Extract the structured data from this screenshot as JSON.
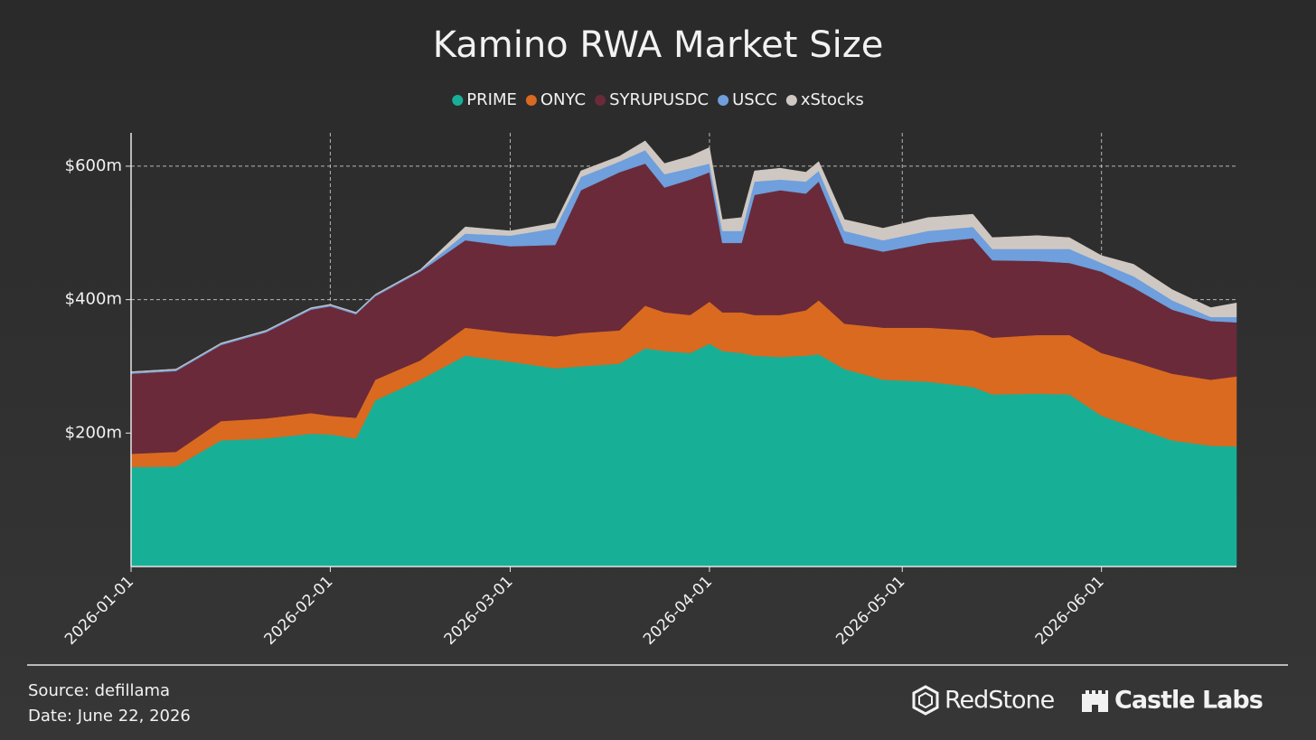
{
  "chart_data": {
    "type": "stacked-area",
    "title": "Kamino RWA Market Size",
    "x": [
      "2026-01-01",
      "2026-01-08",
      "2026-01-15",
      "2026-01-22",
      "2026-01-29",
      "2026-02-01",
      "2026-02-05",
      "2026-02-08",
      "2026-02-15",
      "2026-02-22",
      "2026-03-01",
      "2026-03-08",
      "2026-03-12",
      "2026-03-18",
      "2026-03-22",
      "2026-03-25",
      "2026-03-29",
      "2026-04-01",
      "2026-04-03",
      "2026-04-06",
      "2026-04-08",
      "2026-04-12",
      "2026-04-16",
      "2026-04-18",
      "2026-04-22",
      "2026-04-28",
      "2026-05-05",
      "2026-05-12",
      "2026-05-15",
      "2026-05-22",
      "2026-05-27",
      "2026-06-01",
      "2026-06-06",
      "2026-06-12",
      "2026-06-18",
      "2026-06-22"
    ],
    "series": [
      {
        "name": "PRIME",
        "color": "#17b097",
        "values": [
          149,
          150,
          189,
          192,
          199,
          198,
          192,
          249,
          280,
          316,
          307,
          297,
          300,
          304,
          327,
          323,
          320,
          334,
          323,
          320,
          316,
          314,
          316,
          318,
          296,
          280,
          277,
          269,
          258,
          259,
          258,
          226,
          209,
          189,
          181,
          180
        ]
      },
      {
        "name": "ONYC",
        "color": "#d96a20",
        "values": [
          20,
          22,
          29,
          30,
          31,
          28,
          31,
          31,
          29,
          42,
          43,
          48,
          50,
          50,
          64,
          58,
          57,
          63,
          58,
          61,
          61,
          63,
          68,
          81,
          68,
          78,
          81,
          85,
          85,
          88,
          89,
          94,
          98,
          100,
          99,
          105
        ]
      },
      {
        "name": "SYRUPUSDC",
        "color": "#6a2a3a",
        "values": [
          120,
          121,
          114,
          129,
          155,
          164,
          155,
          125,
          133,
          131,
          130,
          137,
          214,
          237,
          213,
          187,
          203,
          194,
          104,
          104,
          180,
          187,
          175,
          178,
          121,
          114,
          127,
          138,
          116,
          111,
          108,
          122,
          111,
          96,
          88,
          81
        ]
      },
      {
        "name": "USCC",
        "color": "#6f9fdc",
        "values": [
          2,
          2,
          2,
          2,
          2,
          2,
          2,
          2,
          2,
          10,
          16,
          25,
          20,
          16,
          20,
          20,
          17,
          13,
          18,
          18,
          20,
          16,
          18,
          16,
          18,
          17,
          18,
          17,
          17,
          18,
          21,
          13,
          17,
          14,
          6,
          8
        ]
      },
      {
        "name": "xStocks",
        "color": "#cfc8c2",
        "values": [
          1,
          1,
          1,
          1,
          1,
          1,
          1,
          1,
          1,
          10,
          7,
          8,
          9,
          8,
          14,
          16,
          18,
          24,
          17,
          20,
          16,
          17,
          14,
          14,
          17,
          18,
          20,
          19,
          17,
          20,
          17,
          11,
          18,
          16,
          14,
          21
        ]
      }
    ],
    "xlim": [
      "2026-01-01",
      "2026-06-22"
    ],
    "xticks": [
      "2026-01-01",
      "2026-02-01",
      "2026-03-01",
      "2026-04-01",
      "2026-05-01",
      "2026-06-01"
    ],
    "ylim": [
      0,
      650
    ],
    "yticks": [
      {
        "value": 200,
        "label": "$200m"
      },
      {
        "value": 400,
        "label": "$400m"
      },
      {
        "value": 600,
        "label": "$600m"
      }
    ],
    "grid": true,
    "legend": "top"
  },
  "footer": {
    "source": "Source: defillama",
    "date": "Date: June 22, 2026",
    "logos": [
      "RedStone",
      "Castle Labs"
    ]
  }
}
